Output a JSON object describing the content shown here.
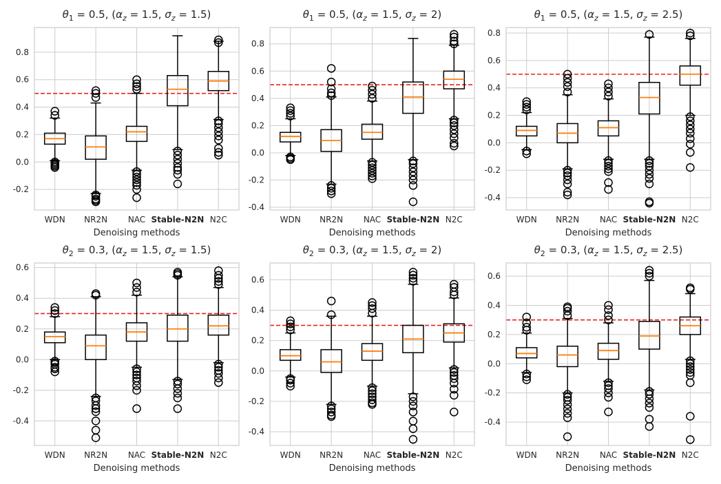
{
  "chart_data": [
    {
      "type": "box",
      "title": "θ₁ = 0.5, (α_z = 1.5, σ_z = 1.5)",
      "xlabel": "Denoising methods",
      "categories": [
        "WDN",
        "NR2N",
        "NAC",
        "Stable-N2N",
        "N2C"
      ],
      "bold_category": "Stable-N2N",
      "ylim": [
        -0.35,
        0.98
      ],
      "yticks": [
        -0.2,
        0.0,
        0.2,
        0.4,
        0.6,
        0.8
      ],
      "reference_line": 0.5,
      "boxes": [
        {
          "q1": 0.13,
          "median": 0.17,
          "q3": 0.21,
          "whisker_low": 0.01,
          "whisker_high": 0.32,
          "outliers": [
            0.0,
            -0.01,
            -0.02,
            -0.03,
            -0.04,
            0.34,
            0.37
          ]
        },
        {
          "q1": 0.02,
          "median": 0.11,
          "q3": 0.19,
          "whisker_low": -0.23,
          "whisker_high": 0.43,
          "outliers": [
            -0.24,
            -0.25,
            -0.27,
            -0.28,
            -0.29,
            0.47,
            0.5,
            0.52
          ]
        },
        {
          "q1": 0.15,
          "median": 0.22,
          "q3": 0.26,
          "whisker_low": -0.06,
          "whisker_high": 0.5,
          "outliers": [
            -0.07,
            -0.09,
            -0.11,
            -0.13,
            -0.15,
            -0.17,
            -0.2,
            -0.26,
            0.53,
            0.55,
            0.57,
            0.6
          ]
        },
        {
          "q1": 0.41,
          "median": 0.53,
          "q3": 0.63,
          "whisker_low": 0.09,
          "whisker_high": 0.92,
          "outliers": [
            0.08,
            0.05,
            0.02,
            -0.01,
            -0.04,
            -0.06,
            -0.09,
            -0.16
          ]
        },
        {
          "q1": 0.52,
          "median": 0.59,
          "q3": 0.66,
          "whisker_low": 0.31,
          "whisker_high": 0.88,
          "outliers": [
            0.3,
            0.28,
            0.25,
            0.22,
            0.19,
            0.16,
            0.1,
            0.07,
            0.05,
            0.87,
            0.89
          ]
        }
      ]
    },
    {
      "type": "box",
      "title": "θ₁ = 0.5, (α_z = 1.5, σ_z = 2)",
      "xlabel": "Denoising methods",
      "categories": [
        "WDN",
        "NR2N",
        "NAC",
        "Stable-N2N",
        "N2C"
      ],
      "bold_category": "Stable-N2N",
      "ylim": [
        -0.42,
        0.92
      ],
      "yticks": [
        -0.4,
        -0.2,
        0.0,
        0.2,
        0.4,
        0.6,
        0.8
      ],
      "reference_line": 0.5,
      "boxes": [
        {
          "q1": 0.08,
          "median": 0.12,
          "q3": 0.15,
          "whisker_low": -0.02,
          "whisker_high": 0.25,
          "outliers": [
            -0.03,
            -0.04,
            -0.05,
            0.27,
            0.29,
            0.31,
            0.33
          ]
        },
        {
          "q1": 0.01,
          "median": 0.09,
          "q3": 0.17,
          "whisker_low": -0.23,
          "whisker_high": 0.41,
          "outliers": [
            -0.24,
            -0.26,
            -0.28,
            -0.3,
            0.42,
            0.44,
            0.47,
            0.52,
            0.62
          ]
        },
        {
          "q1": 0.1,
          "median": 0.15,
          "q3": 0.21,
          "whisker_low": -0.06,
          "whisker_high": 0.38,
          "outliers": [
            -0.07,
            -0.09,
            -0.11,
            -0.13,
            -0.15,
            -0.17,
            -0.19,
            0.4,
            0.43,
            0.46,
            0.49
          ]
        },
        {
          "q1": 0.29,
          "median": 0.41,
          "q3": 0.52,
          "whisker_low": -0.05,
          "whisker_high": 0.84,
          "outliers": [
            -0.06,
            -0.08,
            -0.11,
            -0.14,
            -0.17,
            -0.2,
            -0.24,
            -0.36
          ]
        },
        {
          "q1": 0.47,
          "median": 0.54,
          "q3": 0.6,
          "whisker_low": 0.25,
          "whisker_high": 0.79,
          "outliers": [
            0.24,
            0.22,
            0.2,
            0.17,
            0.14,
            0.11,
            0.07,
            0.05,
            0.8,
            0.82,
            0.85,
            0.87
          ]
        }
      ]
    },
    {
      "type": "box",
      "title": "θ₁ = 0.5, (α_z = 1.5, σ_z = 2.5)",
      "xlabel": "Denoising methods",
      "categories": [
        "WDN",
        "NR2N",
        "NAC",
        "Stable-N2N",
        "N2C"
      ],
      "bold_category": "Stable-N2N",
      "ylim": [
        -0.49,
        0.84
      ],
      "yticks": [
        -0.4,
        -0.2,
        0.0,
        0.2,
        0.4,
        0.6,
        0.8
      ],
      "reference_line": 0.5,
      "boxes": [
        {
          "q1": 0.05,
          "median": 0.09,
          "q3": 0.12,
          "whisker_low": -0.05,
          "whisker_high": 0.22,
          "outliers": [
            -0.06,
            -0.08,
            0.24,
            0.26,
            0.28,
            0.3
          ]
        },
        {
          "q1": 0.0,
          "median": 0.07,
          "q3": 0.14,
          "whisker_low": -0.19,
          "whisker_high": 0.35,
          "outliers": [
            -0.2,
            -0.22,
            -0.24,
            -0.27,
            -0.3,
            -0.36,
            -0.38,
            0.37,
            0.41,
            0.44,
            0.47,
            0.5
          ]
        },
        {
          "q1": 0.05,
          "median": 0.11,
          "q3": 0.16,
          "whisker_low": -0.12,
          "whisker_high": 0.32,
          "outliers": [
            -0.13,
            -0.15,
            -0.17,
            -0.19,
            -0.21,
            -0.29,
            -0.34,
            0.34,
            0.37,
            0.4,
            0.43
          ]
        },
        {
          "q1": 0.21,
          "median": 0.33,
          "q3": 0.44,
          "whisker_low": -0.12,
          "whisker_high": 0.77,
          "outliers": [
            -0.13,
            -0.15,
            -0.17,
            -0.2,
            -0.23,
            -0.26,
            -0.3,
            -0.43,
            -0.44,
            0.79
          ]
        },
        {
          "q1": 0.42,
          "median": 0.5,
          "q3": 0.56,
          "whisker_low": 0.2,
          "whisker_high": 0.76,
          "outliers": [
            0.19,
            0.16,
            0.13,
            0.1,
            0.07,
            0.03,
            -0.01,
            -0.07,
            -0.18,
            0.78,
            0.8
          ]
        }
      ]
    },
    {
      "type": "box",
      "title": "θ₂ = 0.3, (α_z = 1.5, σ_z = 1.5)",
      "xlabel": "Denoising methods",
      "categories": [
        "WDN",
        "NR2N",
        "NAC",
        "Stable-N2N",
        "N2C"
      ],
      "bold_category": "Stable-N2N",
      "ylim": [
        -0.56,
        0.63
      ],
      "yticks": [
        -0.4,
        -0.2,
        0.0,
        0.2,
        0.4,
        0.6
      ],
      "reference_line": 0.3,
      "boxes": [
        {
          "q1": 0.11,
          "median": 0.15,
          "q3": 0.18,
          "whisker_low": 0.0,
          "whisker_high": 0.28,
          "outliers": [
            -0.01,
            -0.02,
            -0.03,
            -0.05,
            -0.06,
            -0.08,
            0.3,
            0.32,
            0.34
          ]
        },
        {
          "q1": 0.0,
          "median": 0.09,
          "q3": 0.16,
          "whisker_low": -0.24,
          "whisker_high": 0.41,
          "outliers": [
            -0.25,
            -0.27,
            -0.3,
            -0.32,
            -0.34,
            -0.4,
            -0.46,
            -0.51,
            0.42,
            0.43
          ]
        },
        {
          "q1": 0.12,
          "median": 0.18,
          "q3": 0.24,
          "whisker_low": -0.05,
          "whisker_high": 0.42,
          "outliers": [
            -0.06,
            -0.08,
            -0.1,
            -0.12,
            -0.14,
            -0.17,
            -0.2,
            -0.32,
            0.44,
            0.47,
            0.5
          ]
        },
        {
          "q1": 0.12,
          "median": 0.2,
          "q3": 0.29,
          "whisker_low": -0.13,
          "whisker_high": 0.54,
          "outliers": [
            -0.14,
            -0.16,
            -0.19,
            -0.22,
            -0.25,
            -0.32,
            0.55,
            0.56,
            0.57
          ]
        },
        {
          "q1": 0.16,
          "median": 0.22,
          "q3": 0.29,
          "whisker_low": -0.02,
          "whisker_high": 0.47,
          "outliers": [
            -0.03,
            -0.05,
            -0.07,
            -0.09,
            -0.12,
            -0.15,
            0.49,
            0.51,
            0.53,
            0.55,
            0.58
          ]
        }
      ]
    },
    {
      "type": "box",
      "title": "θ₂ = 0.3, (α_z = 1.5, σ_z = 2)",
      "xlabel": "Denoising methods",
      "categories": [
        "WDN",
        "NR2N",
        "NAC",
        "Stable-N2N",
        "N2C"
      ],
      "bold_category": "Stable-N2N",
      "ylim": [
        -0.49,
        0.71
      ],
      "yticks": [
        -0.4,
        -0.2,
        0.0,
        0.2,
        0.4,
        0.6
      ],
      "reference_line": 0.3,
      "boxes": [
        {
          "q1": 0.07,
          "median": 0.1,
          "q3": 0.14,
          "whisker_low": -0.04,
          "whisker_high": 0.25,
          "outliers": [
            -0.05,
            -0.06,
            -0.08,
            -0.1,
            0.27,
            0.29,
            0.31,
            0.33
          ]
        },
        {
          "q1": -0.01,
          "median": 0.06,
          "q3": 0.14,
          "whisker_low": -0.22,
          "whisker_high": 0.36,
          "outliers": [
            -0.23,
            -0.25,
            -0.27,
            -0.29,
            -0.3,
            0.37,
            0.46
          ]
        },
        {
          "q1": 0.07,
          "median": 0.13,
          "q3": 0.18,
          "whisker_low": -0.1,
          "whisker_high": 0.36,
          "outliers": [
            -0.11,
            -0.13,
            -0.15,
            -0.17,
            -0.19,
            -0.21,
            -0.22,
            0.38,
            0.41,
            0.43,
            0.45
          ]
        },
        {
          "q1": 0.12,
          "median": 0.21,
          "q3": 0.3,
          "whisker_low": -0.15,
          "whisker_high": 0.57,
          "outliers": [
            -0.17,
            -0.2,
            -0.23,
            -0.27,
            -0.33,
            -0.38,
            -0.45,
            0.59,
            0.61,
            0.63,
            0.65
          ]
        },
        {
          "q1": 0.19,
          "median": 0.25,
          "q3": 0.31,
          "whisker_low": 0.02,
          "whisker_high": 0.48,
          "outliers": [
            0.01,
            -0.01,
            -0.03,
            -0.05,
            -0.08,
            -0.12,
            -0.16,
            -0.27,
            0.5,
            0.52,
            0.55,
            0.57
          ]
        }
      ]
    },
    {
      "type": "box",
      "title": "θ₂ = 0.3, (α_z = 1.5, σ_z = 2.5)",
      "xlabel": "Denoising methods",
      "categories": [
        "WDN",
        "NR2N",
        "NAC",
        "Stable-N2N",
        "N2C"
      ],
      "bold_category": "Stable-N2N",
      "ylim": [
        -0.56,
        0.69
      ],
      "yticks": [
        -0.4,
        -0.2,
        0.0,
        0.2,
        0.4,
        0.6
      ],
      "reference_line": 0.3,
      "boxes": [
        {
          "q1": 0.04,
          "median": 0.07,
          "q3": 0.11,
          "whisker_low": -0.06,
          "whisker_high": 0.21,
          "outliers": [
            -0.07,
            -0.09,
            -0.11,
            0.23,
            0.25,
            0.28,
            0.32
          ]
        },
        {
          "q1": -0.02,
          "median": 0.06,
          "q3": 0.12,
          "whisker_low": -0.2,
          "whisker_high": 0.31,
          "outliers": [
            -0.21,
            -0.23,
            -0.25,
            -0.28,
            -0.31,
            -0.34,
            -0.37,
            -0.5,
            0.33,
            0.36,
            0.38,
            0.39
          ]
        },
        {
          "q1": 0.03,
          "median": 0.09,
          "q3": 0.14,
          "whisker_low": -0.12,
          "whisker_high": 0.28,
          "outliers": [
            -0.13,
            -0.15,
            -0.17,
            -0.2,
            -0.23,
            -0.33,
            0.3,
            0.33,
            0.37,
            0.4
          ]
        },
        {
          "q1": 0.1,
          "median": 0.19,
          "q3": 0.29,
          "whisker_low": -0.18,
          "whisker_high": 0.57,
          "outliers": [
            -0.19,
            -0.21,
            -0.24,
            -0.27,
            -0.3,
            -0.38,
            -0.43,
            0.6,
            0.62,
            0.64
          ]
        },
        {
          "q1": 0.2,
          "median": 0.26,
          "q3": 0.32,
          "whisker_low": 0.03,
          "whisker_high": 0.48,
          "outliers": [
            0.02,
            0.0,
            -0.02,
            -0.04,
            -0.06,
            -0.08,
            -0.13,
            -0.36,
            -0.52,
            0.51,
            0.52
          ]
        }
      ]
    }
  ]
}
